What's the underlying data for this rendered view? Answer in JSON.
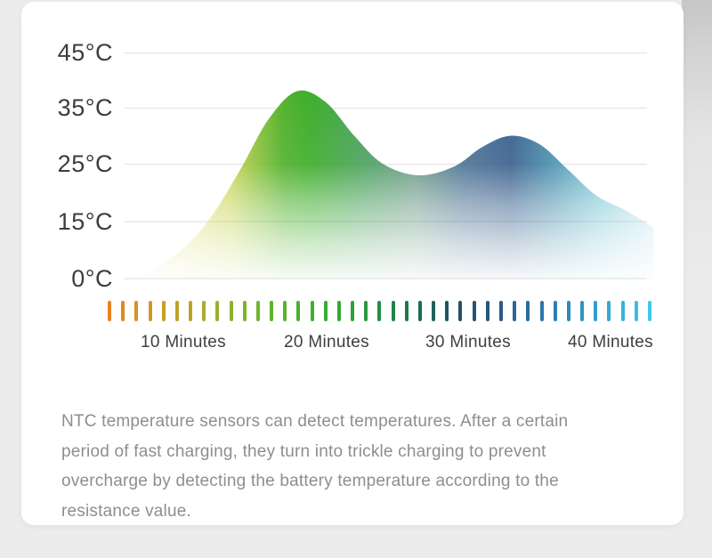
{
  "chart": {
    "y_axis_labels": [
      "45°C",
      "35°C",
      "25°C",
      "15°C",
      "0°C"
    ],
    "x_axis_labels": [
      "10 Minutes",
      "20 Minutes",
      "30 Minutes",
      "40 Minutes"
    ]
  },
  "timeline_ticks": {
    "count": 41,
    "color_stops": [
      "#e8821f",
      "#cd9a28",
      "#a8ad2e",
      "#74b42e",
      "#3fb22f",
      "#2da23c",
      "#1d7a4e",
      "#224f63",
      "#2b5a86",
      "#2d7cb0",
      "#2fa3cf",
      "#3ec9e6"
    ]
  },
  "description": "NTC temperature sensors can detect temperatures. After a certain period of fast charging, they turn into trickle charging to prevent overcharge by detecting the battery temperature according to the resistance value.",
  "chart_data": {
    "type": "area",
    "x_unit": "Minutes",
    "y_unit": "°C",
    "x": [
      7,
      10,
      12,
      14,
      16,
      18,
      20,
      22,
      24,
      26.5,
      29,
      31,
      33,
      35,
      37,
      39,
      41,
      43
    ],
    "y": [
      0,
      8,
      16,
      24,
      33,
      38,
      36,
      30,
      25,
      23,
      24.5,
      28,
      30,
      28.5,
      24,
      19.5,
      17,
      13.5
    ],
    "peaks": [
      {
        "minute": 18,
        "temp_c": 38
      },
      {
        "minute": 33,
        "temp_c": 30
      }
    ],
    "y_axis_tick_values": [
      0,
      15,
      25,
      35,
      45
    ],
    "y_axis_tick_labels": [
      "0°C",
      "15°C",
      "25°C",
      "35°C",
      "45°C"
    ],
    "x_axis_tick_labels": [
      "10 Minutes",
      "20 Minutes",
      "30 Minutes",
      "40 Minutes"
    ],
    "y_axis_nonlinear": true,
    "ylim": [
      0,
      45
    ],
    "grid": true,
    "legend": false,
    "area_gradient_stops": [
      [
        0,
        "#f6f3d0"
      ],
      [
        0.09,
        "#e9e394"
      ],
      [
        0.2,
        "#c6d452"
      ],
      [
        0.3,
        "#52b12c"
      ],
      [
        0.35,
        "#3ead2b"
      ],
      [
        0.44,
        "#4aa35a"
      ],
      [
        0.55,
        "#6d9a88"
      ],
      [
        0.64,
        "#4f7594"
      ],
      [
        0.73,
        "#3c6290"
      ],
      [
        0.81,
        "#4f94b0"
      ],
      [
        0.89,
        "#79c3d4"
      ],
      [
        1,
        "#c6e9ef"
      ]
    ],
    "grid_color": "#e4e4e4",
    "tick_color_start": "#e8821f",
    "tick_color_end": "#3ec9e6"
  }
}
